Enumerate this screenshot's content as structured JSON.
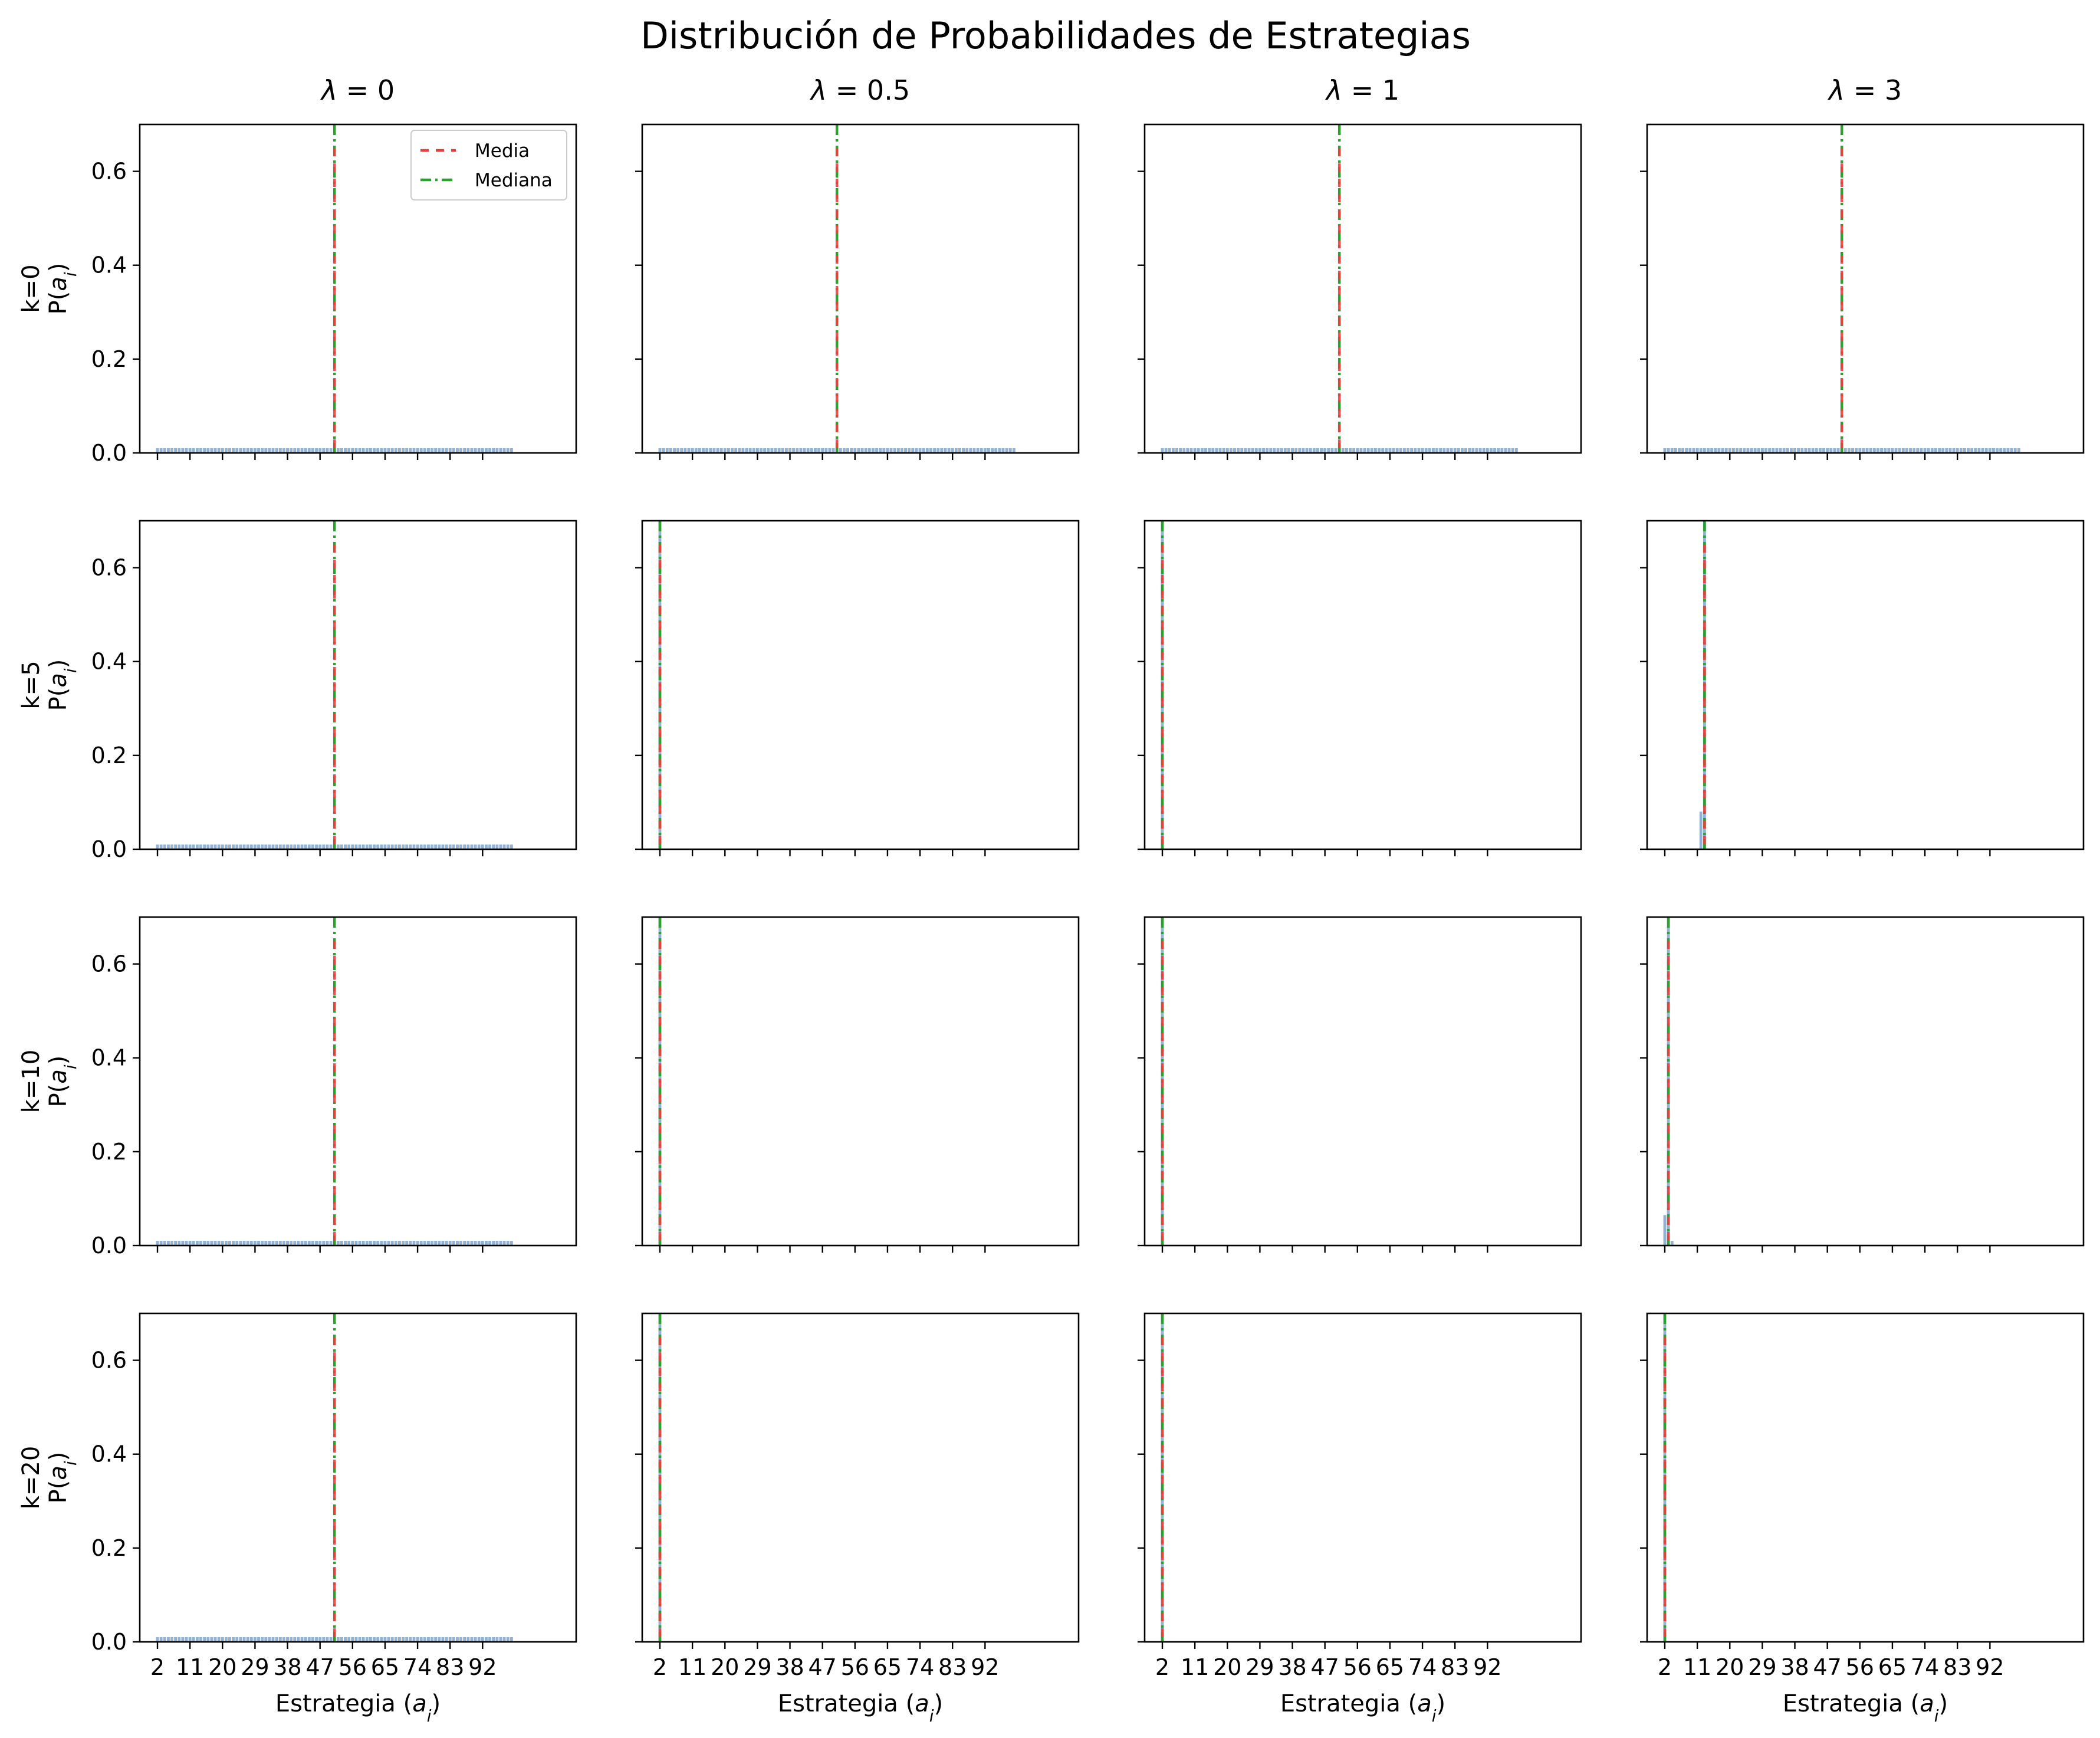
{
  "figure": {
    "title": "Distribución de Probabilidades de Estrategias",
    "col_titles": [
      "λ = 0",
      "λ = 0.5",
      "λ = 1",
      "λ = 3"
    ],
    "row_labels": [
      "k=0",
      "k=5",
      "k=10",
      "k=20"
    ],
    "ylabel": "P(a_i)",
    "xlabel": "Estrategia (a_i)",
    "legend": {
      "mean": "Media",
      "median": "Mediana"
    }
  },
  "colors": {
    "bars": "#7fa6cc",
    "mean": "#f03b3b",
    "median": "#2ca02c",
    "axes": "#000000"
  },
  "chart_data": {
    "type": "bar",
    "layout": "4x4 grid of subplots (rows: k, columns: lambda)",
    "x_range": [
      2,
      100
    ],
    "xlim": [
      -2.9,
      117.9
    ],
    "xticks": [
      2,
      11,
      20,
      29,
      38,
      47,
      56,
      65,
      74,
      83,
      92
    ],
    "ylim": [
      0,
      0.7
    ],
    "yticks": [
      0.0,
      0.2,
      0.4,
      0.6
    ],
    "ytick_labels": [
      "0.0",
      "0.2",
      "0.4",
      "0.6"
    ],
    "legend_position": "upper right of first subplot",
    "subplots": [
      {
        "row": "k=0",
        "col": "λ = 0",
        "distribution": "uniform",
        "p": 0.0101,
        "mean": 51,
        "median": 51
      },
      {
        "row": "k=0",
        "col": "λ = 0.5",
        "distribution": "uniform",
        "p": 0.0101,
        "mean": 51,
        "median": 51
      },
      {
        "row": "k=0",
        "col": "λ = 1",
        "distribution": "uniform",
        "p": 0.0101,
        "mean": 51,
        "median": 51
      },
      {
        "row": "k=0",
        "col": "λ = 3",
        "distribution": "uniform",
        "p": 0.0101,
        "mean": 51,
        "median": 51
      },
      {
        "row": "k=5",
        "col": "λ = 0",
        "distribution": "uniform",
        "p": 0.0101,
        "mean": 51,
        "median": 51
      },
      {
        "row": "k=5",
        "col": "λ = 0.5",
        "distribution": "point",
        "bars": [
          {
            "x": 2,
            "p": 1.0
          }
        ],
        "mean": 2,
        "median": 2
      },
      {
        "row": "k=5",
        "col": "λ = 1",
        "distribution": "point",
        "bars": [
          {
            "x": 2,
            "p": 1.0
          }
        ],
        "mean": 2,
        "median": 2
      },
      {
        "row": "k=5",
        "col": "λ = 3",
        "distribution": "point",
        "bars": [
          {
            "x": 12,
            "p": 0.08
          },
          {
            "x": 13,
            "p": 0.92
          }
        ],
        "mean": 13,
        "median": 13
      },
      {
        "row": "k=10",
        "col": "λ = 0",
        "distribution": "uniform",
        "p": 0.0101,
        "mean": 51,
        "median": 51
      },
      {
        "row": "k=10",
        "col": "λ = 0.5",
        "distribution": "point",
        "bars": [
          {
            "x": 2,
            "p": 1.0
          }
        ],
        "mean": 2,
        "median": 2
      },
      {
        "row": "k=10",
        "col": "λ = 1",
        "distribution": "point",
        "bars": [
          {
            "x": 2,
            "p": 1.0
          }
        ],
        "mean": 2,
        "median": 2
      },
      {
        "row": "k=10",
        "col": "λ = 3",
        "distribution": "point",
        "bars": [
          {
            "x": 2,
            "p": 0.065
          },
          {
            "x": 3,
            "p": 0.92
          },
          {
            "x": 4,
            "p": 0.01
          }
        ],
        "mean": 3,
        "median": 3
      },
      {
        "row": "k=20",
        "col": "λ = 0",
        "distribution": "uniform",
        "p": 0.0101,
        "mean": 51,
        "median": 51
      },
      {
        "row": "k=20",
        "col": "λ = 0.5",
        "distribution": "point",
        "bars": [
          {
            "x": 2,
            "p": 1.0
          }
        ],
        "mean": 2,
        "median": 2
      },
      {
        "row": "k=20",
        "col": "λ = 1",
        "distribution": "point",
        "bars": [
          {
            "x": 2,
            "p": 1.0
          }
        ],
        "mean": 2,
        "median": 2
      },
      {
        "row": "k=20",
        "col": "λ = 3",
        "distribution": "point",
        "bars": [
          {
            "x": 2,
            "p": 1.0
          }
        ],
        "mean": 2,
        "median": 2
      }
    ]
  }
}
